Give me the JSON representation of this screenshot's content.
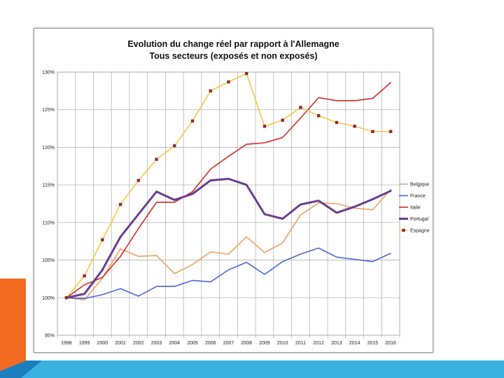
{
  "slide": {
    "accent_colors": {
      "orange": "#f26b21",
      "blue_light": "#3ab1e1",
      "blue_dark": "#1b7fbf"
    }
  },
  "chart_data": {
    "type": "line",
    "title": "Evolution du change réel par rapport à l'Allemagne",
    "subtitle": "Tous secteurs (exposés et non exposés)",
    "x": [
      "1998",
      "1999",
      "2000",
      "2001",
      "2002",
      "2003",
      "2004",
      "2005",
      "2006",
      "2007",
      "2008",
      "2009",
      "2010",
      "2011",
      "2012",
      "2013",
      "2014",
      "2015",
      "2016"
    ],
    "ylim": [
      95,
      130
    ],
    "yticks": [
      95,
      100,
      105,
      110,
      115,
      120,
      125,
      130
    ],
    "ytick_labels": [
      "95%",
      "100%",
      "105%",
      "110%",
      "115%",
      "120%",
      "125%",
      "130%"
    ],
    "grid": "both",
    "legend_position": "right",
    "series": [
      {
        "name": "Belgique",
        "color": "#f0a35e",
        "width": 1.6,
        "marker": false,
        "values": [
          100.0,
          99.7,
          102.6,
          106.5,
          105.5,
          105.6,
          103.2,
          104.4,
          106.1,
          105.8,
          108.1,
          106.0,
          107.3,
          111.0,
          112.6,
          112.5,
          111.9,
          111.7,
          114.4
        ]
      },
      {
        "name": "France",
        "color": "#4a67d6",
        "width": 1.6,
        "marker": false,
        "values": [
          100.0,
          99.9,
          100.4,
          101.2,
          100.2,
          101.5,
          101.5,
          102.3,
          102.1,
          103.7,
          104.7,
          103.1,
          104.8,
          105.8,
          106.6,
          105.4,
          105.1,
          104.8,
          105.9
        ]
      },
      {
        "name": "Italie",
        "color": "#d42a2a",
        "width": 1.6,
        "marker": false,
        "values": [
          100.0,
          101.7,
          102.7,
          105.5,
          109.2,
          112.7,
          112.7,
          114.1,
          117.1,
          118.8,
          120.4,
          120.6,
          121.3,
          123.9,
          126.6,
          126.2,
          126.2,
          126.5,
          128.6
        ]
      },
      {
        "name": "Portugal",
        "color": "#6b3d8f",
        "width": 3,
        "marker": false,
        "values": [
          100.0,
          100.5,
          103.7,
          108.1,
          111.1,
          114.1,
          113.0,
          113.8,
          115.6,
          115.8,
          115.0,
          111.1,
          110.5,
          112.4,
          112.9,
          111.3,
          112.1,
          113.1,
          114.2
        ]
      },
      {
        "name": "Espagne",
        "color": "#f5c842",
        "width": 1.6,
        "marker": true,
        "marker_color": "#8e2a37",
        "values": [
          100.0,
          102.9,
          107.7,
          112.4,
          115.6,
          118.4,
          120.2,
          123.5,
          127.5,
          128.7,
          129.8,
          122.8,
          123.6,
          125.3,
          124.2,
          123.3,
          122.8,
          122.1,
          122.1
        ]
      }
    ]
  }
}
